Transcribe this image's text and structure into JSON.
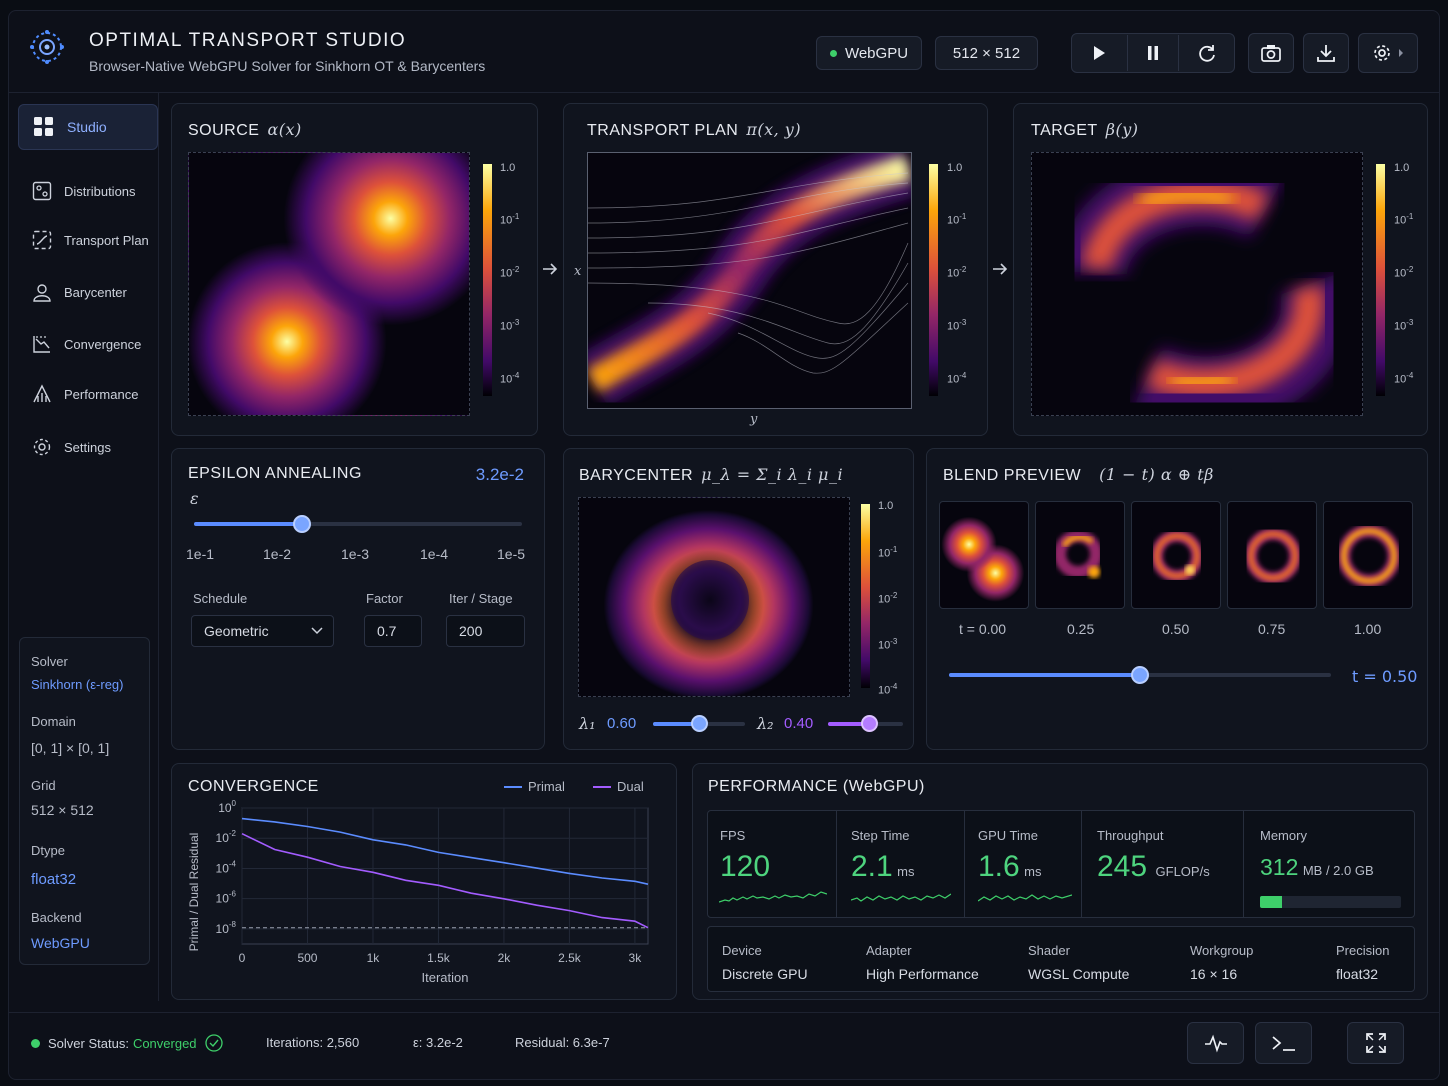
{
  "app": {
    "title": "OPTIMAL TRANSPORT STUDIO",
    "subtitle": "Browser-Native WebGPU Solver for Sinkhorn OT & Barycenters"
  },
  "header": {
    "backend_chip": "WebGPU",
    "resolution_chip": "512 × 512",
    "colors": {
      "accent": "#4f8cff",
      "status_ok": "#3ecf6a"
    }
  },
  "sidebar": {
    "items": [
      {
        "label": "Studio",
        "icon": "grid-icon",
        "active": true
      },
      {
        "label": "Distributions",
        "icon": "distribution-icon"
      },
      {
        "label": "Transport Plan",
        "icon": "transport-icon"
      },
      {
        "label": "Barycenter",
        "icon": "barycenter-icon"
      },
      {
        "label": "Convergence",
        "icon": "convergence-icon"
      },
      {
        "label": "Performance",
        "icon": "performance-icon"
      },
      {
        "label": "Settings",
        "icon": "gear-icon"
      }
    ],
    "info": {
      "solver_label": "Solver",
      "solver_value": "Sinkhorn (ε-reg)",
      "domain_label": "Domain",
      "domain_value": "[0, 1] × [0, 1]",
      "grid_label": "Grid",
      "grid_value": "512 × 512",
      "dtype_label": "Dtype",
      "dtype_value": "float32",
      "backend_label": "Backend",
      "backend_value": "WebGPU"
    }
  },
  "colorbar_ticks": [
    "1.0",
    "10",
    "10",
    "10",
    "10"
  ],
  "colorbar_exps": [
    "",
    "-1",
    "-2",
    "-3",
    "-4"
  ],
  "source": {
    "title": "SOURCE",
    "math": "α(x)"
  },
  "plan": {
    "title": "TRANSPORT PLAN",
    "math": "π(x, y)",
    "xlabel": "y",
    "ylabel": "x"
  },
  "target": {
    "title": "TARGET",
    "math": "β(y)"
  },
  "epsilon": {
    "title": "EPSILON ANNEALING",
    "value": "3.2e-2",
    "symbol": "ε",
    "slider_fraction": 0.33,
    "ticks": [
      "1e-1",
      "1e-2",
      "1e-3",
      "1e-4",
      "1e-5"
    ],
    "schedule_label": "Schedule",
    "schedule_value": "Geometric",
    "factor_label": "Factor",
    "factor_value": "0.7",
    "iter_label": "Iter / Stage",
    "iter_value": "200"
  },
  "barycenter": {
    "title": "BARYCENTER",
    "math": "μ_λ = Σ_i λ_i μ_i",
    "lambda1_label": "λ₁",
    "lambda1_value": "0.60",
    "lambda2_label": "λ₂",
    "lambda2_value": "0.40",
    "lambda1_fraction": 0.5,
    "lambda2_fraction": 0.55
  },
  "blend": {
    "title": "BLEND PREVIEW",
    "math": "(1 − t) α ⊕ tβ",
    "frames": [
      "t = 0.00",
      "0.25",
      "0.50",
      "0.75",
      "1.00"
    ],
    "t_label": "t = 0.50",
    "t_fraction": 0.5
  },
  "convergence": {
    "title": "CONVERGENCE",
    "legend_primal": "Primal",
    "legend_dual": "Dual",
    "ylabel": "Primal / Dual Residual",
    "xlabel": "Iteration",
    "xticks": [
      "0",
      "500",
      "1k",
      "1.5k",
      "2k",
      "2.5k",
      "3k"
    ],
    "yticks": [
      "10",
      "10",
      "10",
      "10",
      "10"
    ],
    "yexps": [
      "0",
      "-2",
      "-4",
      "-6",
      "-8"
    ]
  },
  "chart_data": {
    "type": "line",
    "xlabel": "Iteration",
    "ylabel": "Primal / Dual Residual",
    "xlim": [
      0,
      3100
    ],
    "ylim": [
      1e-09,
      1.0
    ],
    "yscale": "log",
    "legend": "top-right",
    "grid": true,
    "x": [
      0,
      250,
      500,
      750,
      1000,
      1250,
      1500,
      1750,
      2000,
      2250,
      2500,
      2750,
      3000,
      3100
    ],
    "series": [
      {
        "name": "Primal",
        "color": "#5b8cff",
        "values": [
          0.2,
          0.12,
          0.06,
          0.025,
          0.008,
          0.0035,
          0.0012,
          0.0005,
          0.00025,
          0.0001,
          5e-05,
          2.2e-05,
          1.5e-05,
          9e-06
        ]
      },
      {
        "name": "Dual",
        "color": "#a35cff",
        "values": [
          0.02,
          0.002,
          0.0005,
          0.00015,
          5e-05,
          1.8e-05,
          7e-06,
          2.5e-06,
          9e-07,
          4e-07,
          1.5e-07,
          6e-08,
          3e-08,
          1.2e-08
        ]
      }
    ],
    "reference_line": 1.2e-08
  },
  "performance": {
    "title": "PERFORMANCE (WebGPU)",
    "fps_label": "FPS",
    "fps_value": "120",
    "step_label": "Step Time",
    "step_value": "2.1",
    "step_unit": "ms",
    "gpu_label": "GPU Time",
    "gpu_value": "1.6",
    "gpu_unit": "ms",
    "throughput_label": "Throughput",
    "throughput_value": "245",
    "throughput_unit": "GFLOP/s",
    "memory_label": "Memory",
    "memory_value": "312",
    "memory_unit": "MB / 2.0 GB",
    "memory_fraction": 0.156,
    "device_label": "Device",
    "device_value": "Discrete GPU",
    "adapter_label": "Adapter",
    "adapter_value": "High Performance",
    "shader_label": "Shader",
    "shader_value": "WGSL Compute",
    "workgroup_label": "Workgroup",
    "workgroup_value": "16 × 16",
    "precision_label": "Precision",
    "precision_value": "float32"
  },
  "status": {
    "label": "Solver Status:",
    "value": "Converged",
    "iterations": "Iterations: 2,560",
    "epsilon": "ε: 3.2e-2",
    "residual": "Residual: 6.3e-7"
  }
}
